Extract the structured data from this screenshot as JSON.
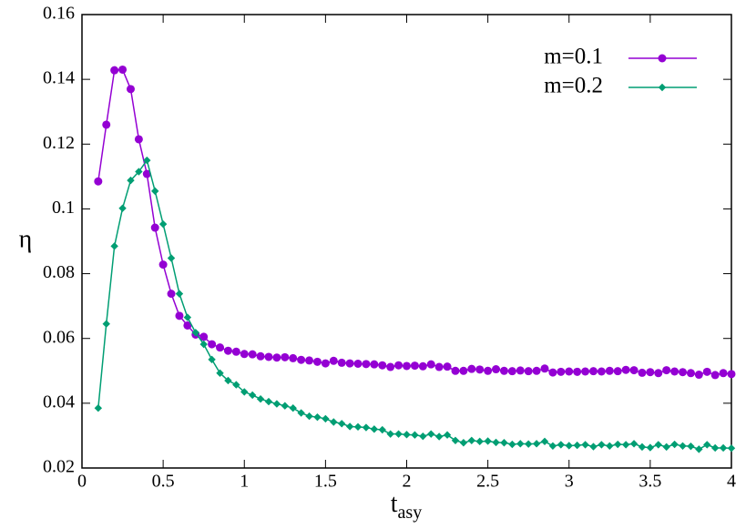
{
  "chart_data": {
    "type": "line",
    "xlabel": {
      "main": "t",
      "sub": "asy"
    },
    "ylabel": "η",
    "legend": "top-right",
    "x": [
      0.1,
      0.15,
      0.2,
      0.25,
      0.3,
      0.35,
      0.4,
      0.45,
      0.5,
      0.55,
      0.6,
      0.65,
      0.7,
      0.75,
      0.8,
      0.85,
      0.9,
      0.95,
      1,
      1.05,
      1.1,
      1.15,
      1.2,
      1.25,
      1.3,
      1.35,
      1.4,
      1.45,
      1.5,
      1.55,
      1.6,
      1.65,
      1.7,
      1.75,
      1.8,
      1.85,
      1.9,
      1.95,
      2,
      2.05,
      2.1,
      2.15,
      2.2,
      2.25,
      2.3,
      2.35,
      2.4,
      2.45,
      2.5,
      2.55,
      2.6,
      2.65,
      2.7,
      2.75,
      2.8,
      2.85,
      2.9,
      2.95,
      3,
      3.05,
      3.1,
      3.15,
      3.2,
      3.25,
      3.3,
      3.35,
      3.4,
      3.45,
      3.5,
      3.55,
      3.6,
      3.65,
      3.7,
      3.75,
      3.8,
      3.85,
      3.9,
      3.95,
      4
    ],
    "series": [
      {
        "name": "m=0.1",
        "color": "#9400d3",
        "marker": "circle",
        "values": [
          0.1085,
          0.126,
          0.1428,
          0.143,
          0.137,
          0.1215,
          0.1108,
          0.0942,
          0.0828,
          0.0738,
          0.067,
          0.064,
          0.0612,
          0.0605,
          0.0582,
          0.0572,
          0.0562,
          0.0559,
          0.0552,
          0.0551,
          0.0545,
          0.0543,
          0.0541,
          0.0542,
          0.0539,
          0.0534,
          0.0532,
          0.0528,
          0.0523,
          0.0531,
          0.0525,
          0.0523,
          0.0522,
          0.0521,
          0.052,
          0.0517,
          0.0512,
          0.0517,
          0.0515,
          0.0516,
          0.0514,
          0.052,
          0.0512,
          0.0513,
          0.05,
          0.05,
          0.0506,
          0.0504,
          0.05,
          0.0505,
          0.05,
          0.0499,
          0.0501,
          0.0499,
          0.05,
          0.0507,
          0.0495,
          0.0497,
          0.0498,
          0.0497,
          0.0498,
          0.0499,
          0.0498,
          0.05,
          0.0499,
          0.0503,
          0.0502,
          0.0494,
          0.0496,
          0.0493,
          0.0502,
          0.0498,
          0.0496,
          0.0493,
          0.0488,
          0.0497,
          0.0487,
          0.0493,
          0.049
        ]
      },
      {
        "name": "m=0.2",
        "color": "#009e73",
        "marker": "diamond",
        "values": [
          0.0385,
          0.0645,
          0.0885,
          0.1002,
          0.1088,
          0.1115,
          0.115,
          0.1055,
          0.0953,
          0.0848,
          0.0738,
          0.0665,
          0.0618,
          0.0582,
          0.0535,
          0.0493,
          0.047,
          0.0457,
          0.0435,
          0.0425,
          0.0413,
          0.0405,
          0.0398,
          0.0392,
          0.0385,
          0.037,
          0.036,
          0.0357,
          0.0352,
          0.0342,
          0.0337,
          0.0328,
          0.0327,
          0.0325,
          0.032,
          0.0318,
          0.0305,
          0.0305,
          0.0303,
          0.0302,
          0.0298,
          0.0305,
          0.0297,
          0.0302,
          0.0285,
          0.0278,
          0.0285,
          0.0282,
          0.0283,
          0.0279,
          0.0278,
          0.0273,
          0.0275,
          0.0274,
          0.0275,
          0.0282,
          0.0268,
          0.0272,
          0.0269,
          0.027,
          0.0272,
          0.0266,
          0.0272,
          0.0268,
          0.0273,
          0.0272,
          0.0275,
          0.0265,
          0.0263,
          0.0272,
          0.0265,
          0.0273,
          0.0268,
          0.0267,
          0.0258,
          0.0272,
          0.0262,
          0.0262,
          0.0261
        ]
      }
    ],
    "xlim": [
      0,
      4
    ],
    "xticks": [
      0,
      0.5,
      1,
      1.5,
      2,
      2.5,
      3,
      3.5,
      4
    ],
    "ylim": [
      0.02,
      0.16
    ],
    "yticks": [
      0.02,
      0.04,
      0.06,
      0.08,
      0.1,
      0.12,
      0.14,
      0.16
    ],
    "grid": false
  }
}
